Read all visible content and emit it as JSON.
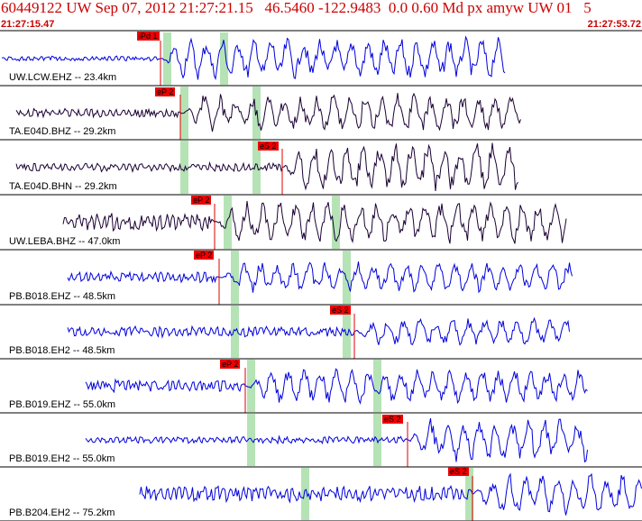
{
  "header": {
    "title": "60449122 UW Sep 07, 2012 21:27:21.15   46.5460 -122.9483  0.0 0.60 Md px amyw UW 01   5",
    "start_time": "21:27:15.47",
    "end_time": "21:27:53.72"
  },
  "colors": {
    "header_text": "#cc0000",
    "pick_box": "#ee0000",
    "window_band": "#b5e3b5",
    "trace_blue": "#0000dd",
    "trace_dark": "#1a0033",
    "separator": "#000000"
  },
  "traces": [
    {
      "label": "UW.LCW.EHZ -- 23.4km",
      "color": "blue",
      "picks": [
        "iPd 1"
      ]
    },
    {
      "label": "TA.E04D.BHZ -- 29.2km",
      "color": "dark",
      "picks": [
        "eP 2"
      ]
    },
    {
      "label": "TA.E04D.BHN -- 29.2km",
      "color": "dark",
      "picks": [
        "eS 2"
      ]
    },
    {
      "label": "UW.LEBA.BHZ -- 47.0km",
      "color": "dark",
      "picks": [
        "eP 2"
      ]
    },
    {
      "label": "PB.B018.EHZ -- 48.5km",
      "color": "blue",
      "picks": [
        "eP 2"
      ]
    },
    {
      "label": "PB.B018.EH2 -- 48.5km",
      "color": "blue",
      "picks": [
        "eS 2"
      ]
    },
    {
      "label": "PB.B019.EHZ -- 55.0km",
      "color": "blue",
      "picks": [
        "eP 2"
      ]
    },
    {
      "label": "PB.B019.EH2 -- 55.0km",
      "color": "blue",
      "picks": [
        "eS 2"
      ]
    },
    {
      "label": "PB.B204.EH2 -- 75.2km",
      "color": "blue",
      "picks": [
        "eS 2"
      ]
    }
  ]
}
